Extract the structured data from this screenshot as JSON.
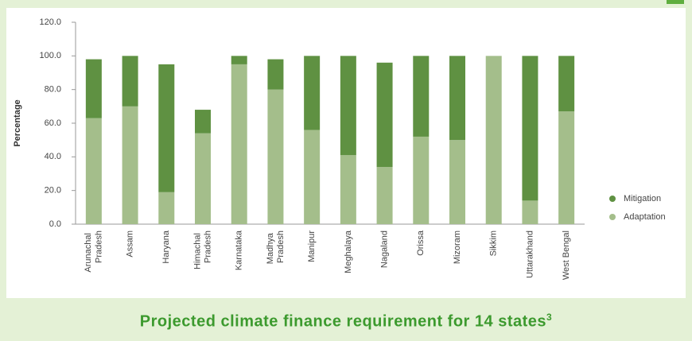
{
  "chart_data": {
    "type": "stacked-bar",
    "ylabel": "Percentage",
    "categories": [
      "Arunachal Pradesh",
      "Assam",
      "Haryana",
      "Himachal Pradesh",
      "Karnataka",
      "Madhya Pradesh",
      "Manipur",
      "Meghalaya",
      "Nagaland",
      "Orissa",
      "Mizoram",
      "Sikkim",
      "Uttarakhand",
      "West Bengal"
    ],
    "series": [
      {
        "name": "Adaptation",
        "color": "#a4be8b",
        "values": [
          63,
          70,
          19,
          54,
          95,
          80,
          56,
          41,
          34,
          52,
          50,
          100,
          14,
          67
        ]
      },
      {
        "name": "Mitigation",
        "color": "#5f9142",
        "values": [
          35,
          30,
          76,
          14,
          5,
          18,
          44,
          59,
          62,
          48,
          50,
          0,
          86,
          33
        ]
      }
    ],
    "ylim": [
      0,
      120
    ],
    "yticks": [
      {
        "value": 0,
        "label": "0.0"
      },
      {
        "value": 20,
        "label": "20.0"
      },
      {
        "value": 40,
        "label": "40.0"
      },
      {
        "value": 60,
        "label": "60.0"
      },
      {
        "value": 80,
        "label": "80.0"
      },
      {
        "value": 100,
        "label": "100.0"
      },
      {
        "value": 120,
        "label": "120.0"
      }
    ],
    "legend": "right",
    "caption": "Projected climate finance requirement for 14 states",
    "caption_footnote": "3"
  }
}
